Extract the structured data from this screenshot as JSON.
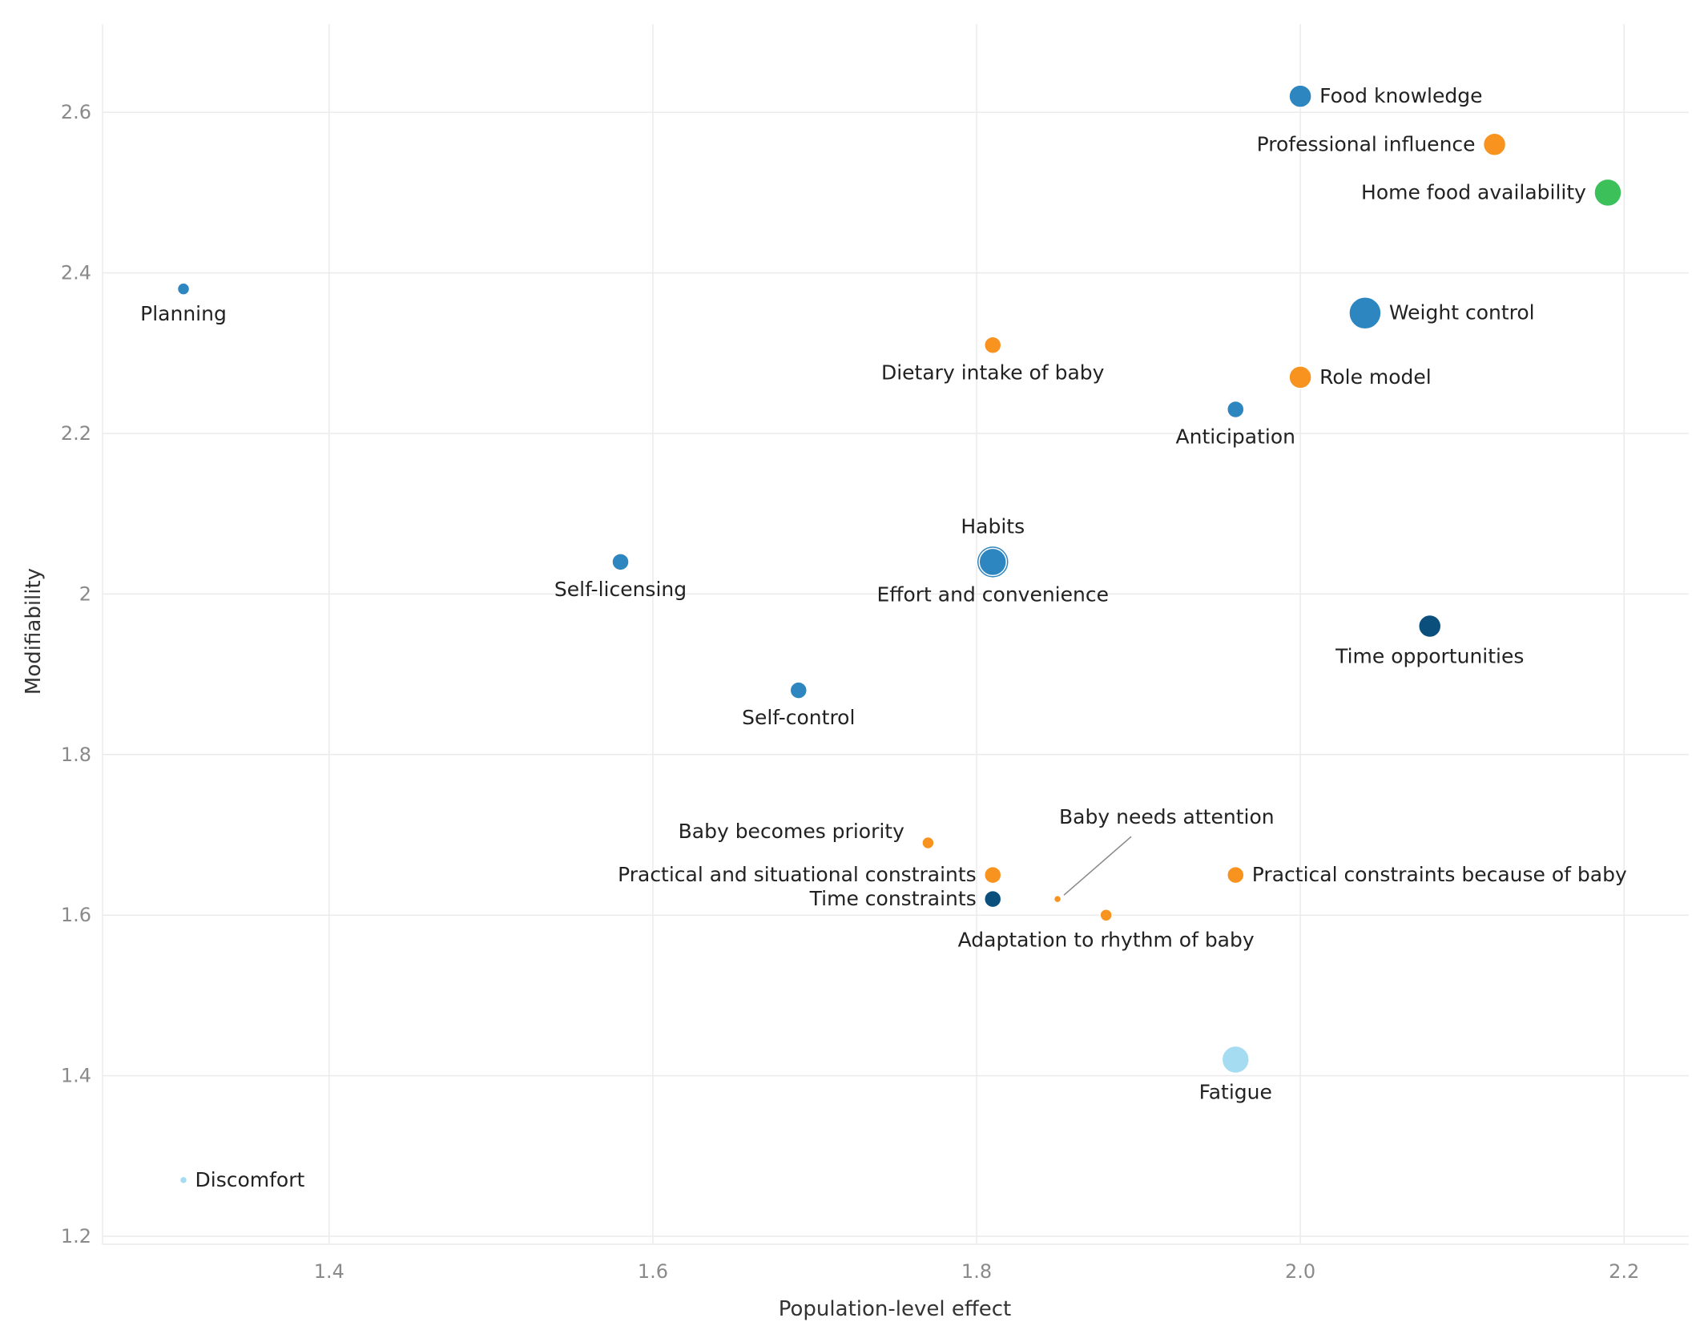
{
  "chart_data": {
    "type": "scatter",
    "title": "",
    "xlabel": "Population-level effect",
    "ylabel": "Modifiability",
    "xlim": [
      1.26,
      2.24
    ],
    "ylim": [
      1.19,
      2.71
    ],
    "xticks": [
      "1.4",
      "1.6",
      "1.8",
      "2.0",
      "2.2"
    ],
    "xtick_values": [
      1.4,
      1.6,
      1.8,
      2.0,
      2.2
    ],
    "yticks": [
      "1.2",
      "1.4",
      "1.6",
      "1.8",
      "2",
      "2.2",
      "2.4",
      "2.6"
    ],
    "ytick_values": [
      1.2,
      1.4,
      1.6,
      1.8,
      2.0,
      2.2,
      2.4,
      2.6
    ],
    "grid": true,
    "legend": "none",
    "colors": {
      "mid_blue": "#2e86c1",
      "dark_blue": "#0b4f7c",
      "light_blue": "#a6dcf2",
      "orange": "#f7931e",
      "green": "#3cc05a",
      "leader": "#888888"
    },
    "points": [
      {
        "label": "Food knowledge",
        "x": 2.0,
        "y": 2.62,
        "size": 3,
        "color": "mid_blue",
        "label_pos": "right"
      },
      {
        "label": "Professional influence",
        "x": 2.12,
        "y": 2.56,
        "size": 3,
        "color": "orange",
        "label_pos": "left"
      },
      {
        "label": "Home food availability",
        "x": 2.19,
        "y": 2.5,
        "size": 4,
        "color": "green",
        "label_pos": "left"
      },
      {
        "label": "Planning",
        "x": 1.31,
        "y": 2.38,
        "size": 1,
        "color": "mid_blue",
        "label_pos": "below"
      },
      {
        "label": "Weight control",
        "x": 2.04,
        "y": 2.35,
        "size": 5,
        "color": "mid_blue",
        "label_pos": "right"
      },
      {
        "label": "Dietary intake of baby",
        "x": 1.81,
        "y": 2.31,
        "size": 2,
        "color": "orange",
        "label_pos": "below"
      },
      {
        "label": "Role model",
        "x": 2.0,
        "y": 2.27,
        "size": 3,
        "color": "orange",
        "label_pos": "right"
      },
      {
        "label": "Anticipation",
        "x": 1.96,
        "y": 2.23,
        "size": 2,
        "color": "mid_blue",
        "label_pos": "below"
      },
      {
        "label": "Habits",
        "x": 1.81,
        "y": 2.04,
        "size": 5,
        "color": "mid_blue",
        "label_pos": "above"
      },
      {
        "label": "Effort and convenience",
        "x": 1.81,
        "y": 2.04,
        "size": 4,
        "color": "mid_blue",
        "label_pos": "below"
      },
      {
        "label": "Self-licensing",
        "x": 1.58,
        "y": 2.04,
        "size": 2,
        "color": "mid_blue",
        "label_pos": "below"
      },
      {
        "label": "Time opportunities",
        "x": 2.08,
        "y": 1.96,
        "size": 3,
        "color": "dark_blue",
        "label_pos": "below"
      },
      {
        "label": "Self-control",
        "x": 1.69,
        "y": 1.88,
        "size": 2,
        "color": "mid_blue",
        "label_pos": "below"
      },
      {
        "label": "Baby becomes priority",
        "x": 1.77,
        "y": 1.69,
        "size": 1,
        "color": "orange",
        "label_pos": "upper-left"
      },
      {
        "label": "Practical and situational constraints",
        "x": 1.81,
        "y": 1.65,
        "size": 2,
        "color": "orange",
        "label_pos": "left"
      },
      {
        "label": "Practical constraints because of baby",
        "x": 1.96,
        "y": 1.65,
        "size": 2,
        "color": "orange",
        "label_pos": "right"
      },
      {
        "label": "Baby needs attention",
        "x": 1.85,
        "y": 1.62,
        "size": 0,
        "color": "orange",
        "label_pos": "leader"
      },
      {
        "label": "Time constraints",
        "x": 1.81,
        "y": 1.62,
        "size": 2,
        "color": "dark_blue",
        "label_pos": "left"
      },
      {
        "label": "Adaptation to rhythm of baby",
        "x": 1.88,
        "y": 1.6,
        "size": 1,
        "color": "orange",
        "label_pos": "below"
      },
      {
        "label": "Fatigue",
        "x": 1.96,
        "y": 1.42,
        "size": 4,
        "color": "light_blue",
        "label_pos": "below"
      },
      {
        "label": "Discomfort",
        "x": 1.31,
        "y": 1.27,
        "size": 0,
        "color": "light_blue",
        "label_pos": "right"
      }
    ]
  }
}
